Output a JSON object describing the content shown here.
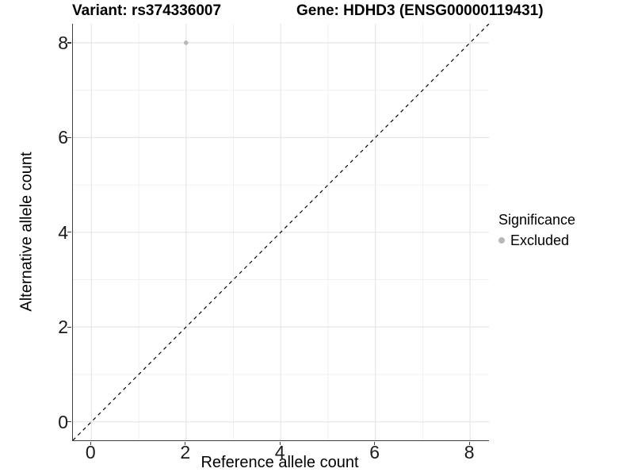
{
  "titles": {
    "variant": "Variant: rs374336007",
    "gene": "Gene: HDHD3 (ENSG00000119431)"
  },
  "axes": {
    "x": {
      "label": "Reference allele count"
    },
    "y": {
      "label": "Alternative allele count"
    }
  },
  "legend": {
    "title": "Significance",
    "items": [
      {
        "label": "Excluded",
        "color": "#b8b8b8"
      }
    ]
  },
  "chart_data": {
    "type": "scatter",
    "title": "Variant: rs374336007  |  Gene: HDHD3 (ENSG00000119431)",
    "xlabel": "Reference allele count",
    "ylabel": "Alternative allele count",
    "xlim": [
      -0.39,
      8.4
    ],
    "ylim": [
      -0.39,
      8.4
    ],
    "x_ticks": [
      0,
      2,
      4,
      6,
      8
    ],
    "y_ticks": [
      0,
      2,
      4,
      6,
      8
    ],
    "minor_ticks": [
      1,
      3,
      5,
      7
    ],
    "grid": true,
    "legend_position": "right",
    "series": [
      {
        "name": "Excluded",
        "points": [
          {
            "x": 2,
            "y": 8
          }
        ]
      }
    ],
    "reference_line": {
      "kind": "identity y=x",
      "style": "dashed",
      "color": "#000000"
    },
    "colors": {
      "excluded": "#b8b8b8",
      "grid_major": "#e6e6e6",
      "grid_minor": "#f0f0f0",
      "axis_line": "#404040",
      "dashed_line": "#000000",
      "background": "#ffffff"
    }
  }
}
